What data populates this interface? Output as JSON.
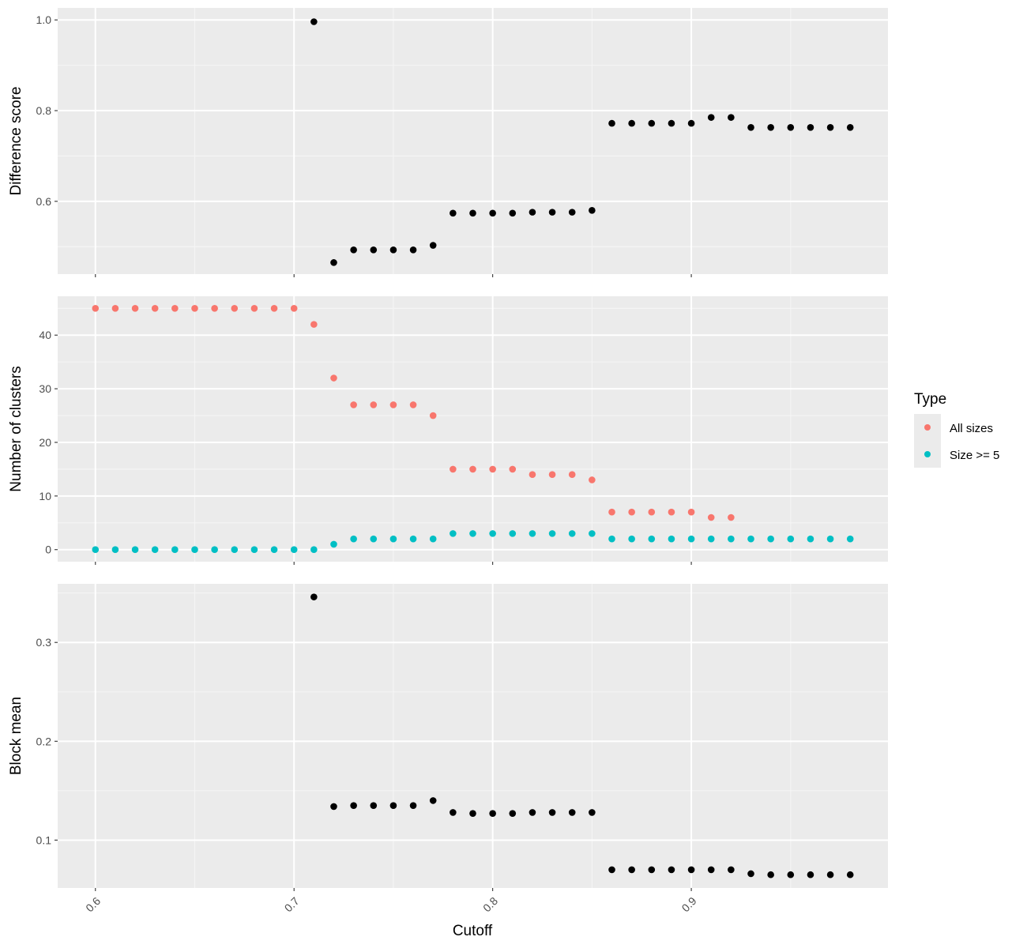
{
  "colors": {
    "panel_background": "#EBEBEB",
    "grid_major": "#FFFFFF",
    "grid_minor": "#F5F5F5",
    "point_default": "#000000",
    "all_sizes": "#F8766D",
    "size_ge_5": "#00BFC4",
    "tick_text": "#4D4D4D",
    "axis_tick": "#333333"
  },
  "legend": {
    "title": "Type",
    "items": [
      {
        "label": "All sizes",
        "color": "#F8766D"
      },
      {
        "label": "Size >= 5",
        "color": "#00BFC4"
      }
    ]
  },
  "x_axis": {
    "label": "Cutoff",
    "ticks": [
      0.6,
      0.7,
      0.8,
      0.9
    ],
    "tick_labels": [
      "0.6",
      "0.7",
      "0.8",
      "0.9"
    ],
    "xlim": [
      0.581,
      0.999
    ]
  },
  "chart_data": [
    {
      "type": "scatter",
      "ylabel": "Difference score",
      "ylim": [
        0.4395,
        1.0265
      ],
      "yticks": [
        0.6,
        0.8,
        1.0
      ],
      "ytick_labels": [
        "0.6",
        "0.8",
        "1.0"
      ],
      "series": [
        {
          "color": "#000000",
          "x": [
            0.71,
            0.72,
            0.73,
            0.74,
            0.75,
            0.76,
            0.77,
            0.78,
            0.79,
            0.8,
            0.81,
            0.82,
            0.83,
            0.84,
            0.85,
            0.86,
            0.87,
            0.88,
            0.89,
            0.9,
            0.91,
            0.92,
            0.93,
            0.94,
            0.95,
            0.96,
            0.97,
            0.98
          ],
          "y": [
            0.996,
            0.465,
            0.493,
            0.493,
            0.493,
            0.493,
            0.503,
            0.574,
            0.574,
            0.574,
            0.574,
            0.576,
            0.576,
            0.576,
            0.58,
            0.772,
            0.772,
            0.772,
            0.772,
            0.772,
            0.785,
            0.785,
            0.763,
            0.763,
            0.763,
            0.763,
            0.763,
            0.763
          ]
        }
      ]
    },
    {
      "type": "scatter",
      "ylabel": "Number of clusters",
      "ylim": [
        -2.25,
        47.25
      ],
      "yticks": [
        0,
        10,
        20,
        30,
        40
      ],
      "ytick_labels": [
        "0",
        "10",
        "20",
        "30",
        "40"
      ],
      "series": [
        {
          "name": "All sizes",
          "color": "#F8766D",
          "x": [
            0.6,
            0.61,
            0.62,
            0.63,
            0.64,
            0.65,
            0.66,
            0.67,
            0.68,
            0.69,
            0.7,
            0.71,
            0.72,
            0.73,
            0.74,
            0.75,
            0.76,
            0.77,
            0.78,
            0.79,
            0.8,
            0.81,
            0.82,
            0.83,
            0.84,
            0.85,
            0.86,
            0.87,
            0.88,
            0.89,
            0.9,
            0.91,
            0.92
          ],
          "y": [
            45,
            45,
            45,
            45,
            45,
            45,
            45,
            45,
            45,
            45,
            45,
            42,
            32,
            27,
            27,
            27,
            27,
            25,
            15,
            15,
            15,
            15,
            14,
            14,
            14,
            13,
            7,
            7,
            7,
            7,
            7,
            6,
            6
          ]
        },
        {
          "name": "Size >= 5",
          "color": "#00BFC4",
          "x": [
            0.6,
            0.61,
            0.62,
            0.63,
            0.64,
            0.65,
            0.66,
            0.67,
            0.68,
            0.69,
            0.7,
            0.71,
            0.72,
            0.73,
            0.74,
            0.75,
            0.76,
            0.77,
            0.78,
            0.79,
            0.8,
            0.81,
            0.82,
            0.83,
            0.84,
            0.85,
            0.86,
            0.87,
            0.88,
            0.89,
            0.9,
            0.91,
            0.92,
            0.93,
            0.94,
            0.95,
            0.96,
            0.97,
            0.98
          ],
          "y": [
            0,
            0,
            0,
            0,
            0,
            0,
            0,
            0,
            0,
            0,
            0,
            0,
            1,
            2,
            2,
            2,
            2,
            2,
            3,
            3,
            3,
            3,
            3,
            3,
            3,
            3,
            2,
            2,
            2,
            2,
            2,
            2,
            2,
            2,
            2,
            2,
            2,
            2,
            2
          ]
        }
      ]
    },
    {
      "type": "scatter",
      "ylabel": "Block mean",
      "ylim": [
        0.0516,
        0.3593
      ],
      "yticks": [
        0.1,
        0.2,
        0.3
      ],
      "ytick_labels": [
        "0.1",
        "0.2",
        "0.3"
      ],
      "series": [
        {
          "color": "#000000",
          "x": [
            0.71,
            0.72,
            0.73,
            0.74,
            0.75,
            0.76,
            0.77,
            0.78,
            0.79,
            0.8,
            0.81,
            0.82,
            0.83,
            0.84,
            0.85,
            0.86,
            0.87,
            0.88,
            0.89,
            0.9,
            0.91,
            0.92,
            0.93,
            0.94,
            0.95,
            0.96,
            0.97,
            0.98
          ],
          "y": [
            0.346,
            0.134,
            0.135,
            0.135,
            0.135,
            0.135,
            0.14,
            0.128,
            0.127,
            0.127,
            0.127,
            0.128,
            0.128,
            0.128,
            0.128,
            0.07,
            0.07,
            0.07,
            0.07,
            0.07,
            0.07,
            0.07,
            0.066,
            0.065,
            0.065,
            0.065,
            0.065,
            0.065
          ]
        }
      ]
    }
  ]
}
